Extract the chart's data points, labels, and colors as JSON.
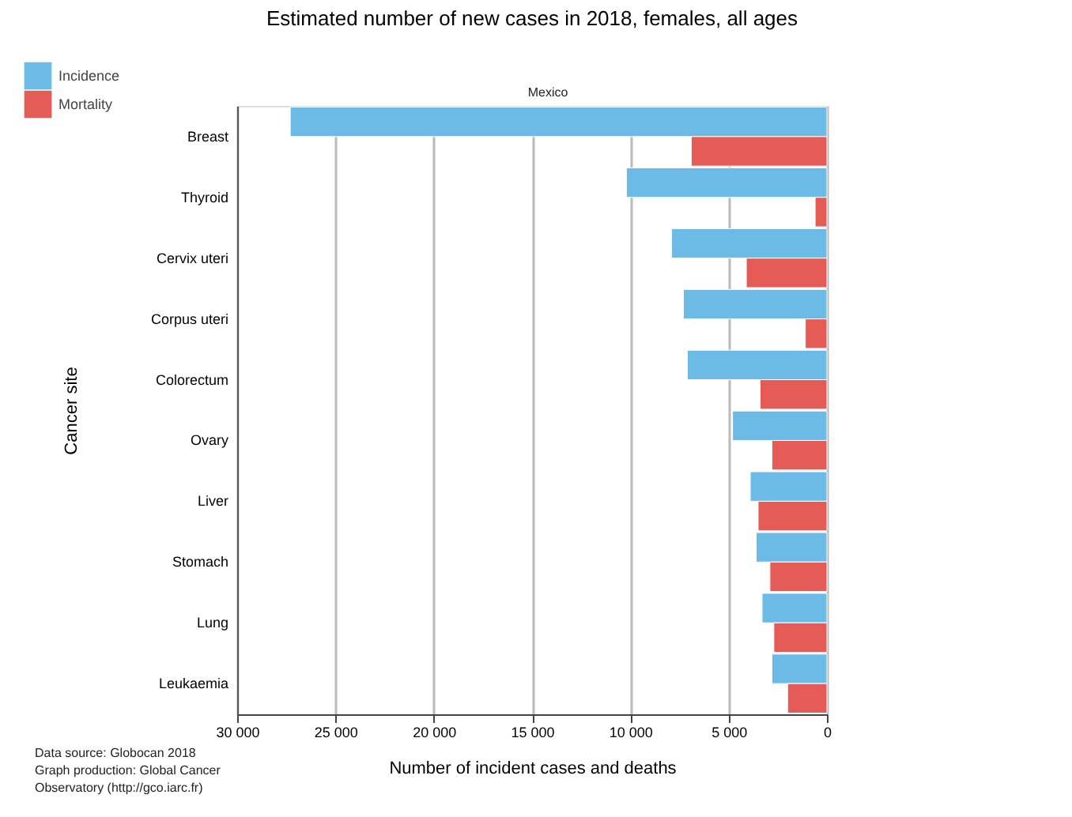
{
  "chart_data": {
    "type": "bar",
    "orientation": "horizontal",
    "title": "Estimated number of new cases in 2018, females, all ages",
    "categories": [
      "Breast",
      "Thyroid",
      "Cervix uteri",
      "Corpus uteri",
      "Colorectum",
      "Ovary",
      "Liver",
      "Stomach",
      "Lung",
      "Leukaemia"
    ],
    "series": [
      {
        "name": "Incidence",
        "color": "#6bbbe6",
        "values": [
          27300,
          10200,
          7900,
          7300,
          7100,
          4800,
          3900,
          3600,
          3300,
          2800
        ]
      },
      {
        "name": "Mortality",
        "color": "#e55b56",
        "values": [
          6900,
          600,
          4100,
          1100,
          3400,
          2800,
          3500,
          2900,
          2700,
          2000
        ]
      }
    ],
    "xlim": [
      30000,
      0
    ],
    "xticks": [
      {
        "value": 30000,
        "label": "30 000"
      },
      {
        "value": 25000,
        "label": "25 000"
      },
      {
        "value": 20000,
        "label": "20 000"
      },
      {
        "value": 15000,
        "label": "15 000"
      },
      {
        "value": 10000,
        "label": "10 000"
      },
      {
        "value": 5000,
        "label": "5 000"
      },
      0
    ],
    "xlabel": "Number of incident cases and deaths",
    "ylabel": "Cancer site",
    "grid": "x",
    "legend": "top left",
    "annotations": [
      "Mexico",
      "Data source: Globocan 2018",
      "Graph production: Global Cancer",
      "Observatory (http://gco.iarc.fr)"
    ]
  }
}
